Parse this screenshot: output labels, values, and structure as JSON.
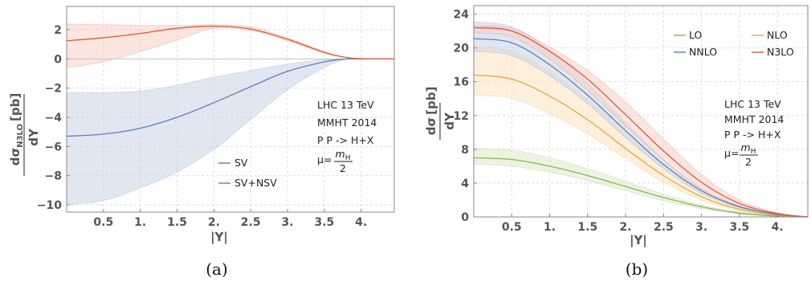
{
  "chart_data": [
    {
      "type": "line",
      "caption": "(a)",
      "xlabel": "|Y|",
      "ylabel": "dσ_N3LO/dY [pb]",
      "ylabel_parts": {
        "num_main": "dσ",
        "num_sub": "N3LO",
        "num_unit": "[pb]",
        "den": "dY"
      },
      "xlim": [
        0,
        4.45
      ],
      "ylim": [
        -10.5,
        3.6
      ],
      "xticks": [
        0.5,
        1,
        1.5,
        2,
        2.5,
        3,
        3.5,
        4
      ],
      "xtick_labels": [
        "0.5",
        "1.",
        "1.5",
        "2.",
        "2.5",
        "3.",
        "3.5",
        "4."
      ],
      "yticks": [
        -10,
        -8,
        -6,
        -4,
        -2,
        0,
        2
      ],
      "ytick_labels": [
        "−10",
        "−8",
        "−6",
        "−4",
        "−2",
        "0",
        "2"
      ],
      "grid": true,
      "legend_position": "bottom-right",
      "annotation": [
        "LHC 13 TeV",
        "MMHT 2014",
        "P P -> H+X"
      ],
      "scale_label": {
        "prefix": "μ=",
        "num": "m_H",
        "num_main": "m",
        "num_sub": "H",
        "den": "2"
      },
      "x": [
        0,
        0.5,
        1,
        1.5,
        2,
        2.5,
        3,
        3.5,
        3.8,
        4,
        4.45
      ],
      "series": [
        {
          "name": "SV",
          "color": "#5b7fb5",
          "band_color": "#c9d3e6",
          "values": [
            -5.3,
            -5.15,
            -4.75,
            -4.0,
            -3.0,
            -1.9,
            -0.85,
            -0.2,
            0,
            0,
            0
          ],
          "band_low": [
            -10,
            -9.7,
            -8.85,
            -7.75,
            -6.2,
            -4.15,
            -2.1,
            -0.6,
            0,
            0,
            0
          ],
          "band_high": [
            -2.3,
            -2.3,
            -2.2,
            -1.8,
            -1.25,
            -0.8,
            -0.35,
            -0.05,
            0,
            0,
            0
          ]
        },
        {
          "name": "SV+NSV",
          "color": "#e0583a",
          "band_color": "#f7cfc5",
          "values": [
            1.25,
            1.45,
            1.75,
            2.1,
            2.25,
            2.05,
            1.35,
            0.45,
            0.1,
            0.02,
            0
          ],
          "band_low": [
            -0.6,
            -0.2,
            0.5,
            1.3,
            2.1,
            1.95,
            1.25,
            0.4,
            0.1,
            0.02,
            0
          ],
          "band_high": [
            2.4,
            2.35,
            2.3,
            2.3,
            2.35,
            2.2,
            1.45,
            0.5,
            0.1,
            0.02,
            0
          ]
        }
      ]
    },
    {
      "type": "line",
      "caption": "(b)",
      "xlabel": "|Y|",
      "ylabel": "dσ/dY [pb]",
      "ylabel_parts": {
        "num_main": "dσ",
        "num_sub": "",
        "num_unit": "[pb]",
        "den": "dY"
      },
      "xlim": [
        0,
        4.4
      ],
      "ylim": [
        0,
        25
      ],
      "xticks": [
        0.5,
        1,
        1.5,
        2,
        2.5,
        3,
        3.5,
        4
      ],
      "xtick_labels": [
        "0.5",
        "1.",
        "1.5",
        "2.",
        "2.5",
        "3.",
        "3.5",
        "4."
      ],
      "yticks": [
        0,
        4,
        8,
        12,
        16,
        20,
        24
      ],
      "ytick_labels": [
        "0",
        "4",
        "8",
        "12",
        "16",
        "20",
        "24"
      ],
      "grid": true,
      "legend_position": "top-right",
      "annotation": [
        "LHC 13 TeV",
        "MMHT 2014",
        "P P -> H+X"
      ],
      "scale_label": {
        "prefix": "μ=",
        "num": "m_H",
        "num_main": "m",
        "num_sub": "H",
        "den": "2"
      },
      "x": [
        0,
        0.5,
        1,
        1.5,
        2,
        2.5,
        3,
        3.5,
        4,
        4.4
      ],
      "series": [
        {
          "name": "LO",
          "color": "#8ab35a",
          "band_color": "#dcebc9",
          "values": [
            7.0,
            6.8,
            6.0,
            4.9,
            3.6,
            2.3,
            1.2,
            0.45,
            0.1,
            0
          ],
          "band_low": [
            6.2,
            6.0,
            5.3,
            4.3,
            3.1,
            1.9,
            1.0,
            0.35,
            0.07,
            0
          ],
          "band_high": [
            8.1,
            7.9,
            7.0,
            5.7,
            4.2,
            2.7,
            1.4,
            0.55,
            0.12,
            0
          ]
        },
        {
          "name": "NLO",
          "color": "#e8a83a",
          "band_color": "#f9e3c1",
          "values": [
            16.8,
            16.3,
            14.3,
            11.5,
            8.1,
            4.9,
            2.4,
            0.9,
            0.2,
            0
          ],
          "band_low": [
            14.4,
            14.0,
            12.2,
            9.8,
            6.9,
            4.1,
            2.0,
            0.7,
            0.15,
            0
          ],
          "band_high": [
            20.2,
            19.6,
            17.2,
            13.8,
            9.8,
            5.9,
            2.9,
            1.1,
            0.25,
            0
          ]
        },
        {
          "name": "NNLO",
          "color": "#5b7fb5",
          "band_color": "#c9d3e6",
          "values": [
            21.1,
            20.6,
            18.0,
            14.4,
            10.2,
            6.2,
            3.1,
            1.2,
            0.3,
            0
          ],
          "band_low": [
            19.6,
            19.1,
            16.7,
            13.4,
            9.4,
            5.7,
            2.8,
            1.1,
            0.25,
            0
          ],
          "band_high": [
            23.1,
            22.5,
            19.8,
            15.8,
            11.2,
            6.8,
            3.4,
            1.3,
            0.33,
            0
          ]
        },
        {
          "name": "N3LO",
          "color": "#e0583a",
          "band_color": "#f7cfc5",
          "values": [
            22.4,
            22.0,
            19.6,
            16.3,
            12.1,
            7.8,
            4.1,
            1.6,
            0.4,
            0
          ],
          "band_low": [
            21.8,
            21.3,
            18.7,
            15.0,
            10.8,
            6.7,
            3.3,
            1.3,
            0.3,
            0
          ],
          "band_high": [
            22.6,
            22.3,
            20.1,
            17.3,
            13.6,
            9.2,
            5.0,
            2.0,
            0.5,
            0
          ]
        }
      ]
    }
  ]
}
